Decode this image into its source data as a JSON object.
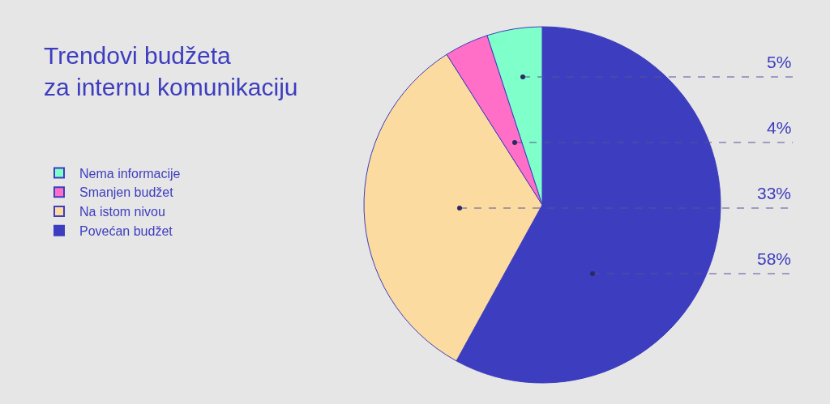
{
  "chart_data": {
    "type": "pie",
    "title": "Trendovi budžeta\nza internu komunikaciju",
    "categories": [
      "Povećan budžet",
      "Na istom nivou",
      "Smanjen budžet",
      "Nema informacije"
    ],
    "values": [
      58,
      33,
      4,
      5
    ],
    "colors": [
      "#3d3dbf",
      "#fcdba0",
      "#ff6ec7",
      "#7fffc9"
    ],
    "value_labels": [
      "58%",
      "33%",
      "4%",
      "5%"
    ],
    "legend": "left"
  }
}
